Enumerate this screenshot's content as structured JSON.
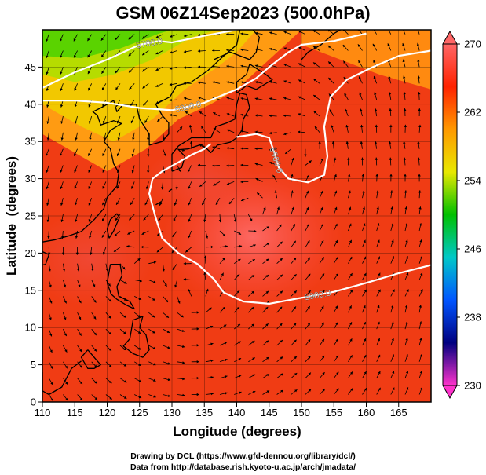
{
  "title": "GSM 06Z14Sep2023 (500.0hPa)",
  "credits": {
    "line1": "Drawing by DCL (https://www.gfd-dennou.org/library/dcl/)",
    "line2": "Data from http://database.rish.kyoto-u.ac.jp/arch/jmadata/"
  },
  "chart_data": {
    "type": "map",
    "xlabel": "Longitude (degrees)",
    "ylabel": "Latitude  (degrees)",
    "xlim": [
      110,
      170
    ],
    "ylim": [
      0,
      50
    ],
    "x_ticks": [
      110,
      115,
      120,
      125,
      130,
      135,
      140,
      145,
      150,
      155,
      160,
      165
    ],
    "y_ticks": [
      0,
      5,
      10,
      15,
      20,
      25,
      30,
      35,
      40,
      45
    ],
    "colorbar": {
      "ticks": [
        230,
        238,
        246,
        254,
        262,
        270
      ],
      "range": [
        230,
        270
      ],
      "colors": [
        "#ff33cc",
        "#000080",
        "#0055ff",
        "#00c8c8",
        "#00c000",
        "#e8e800",
        "#ff9900",
        "#ff2200",
        "#ff6666"
      ]
    },
    "contours": [
      {
        "label": "5700.0",
        "points": [
          [
            110,
            42.2
          ],
          [
            115,
            44.3
          ],
          [
            120,
            46
          ],
          [
            125,
            48
          ],
          [
            128,
            48.5
          ],
          [
            130,
            48.3
          ],
          [
            135,
            49.2
          ],
          [
            140,
            50
          ]
        ]
      },
      {
        "label": "5800.0",
        "points": [
          [
            110,
            40.5
          ],
          [
            115,
            40.5
          ],
          [
            120,
            40.2
          ],
          [
            125,
            39.5
          ],
          [
            130,
            39.2
          ],
          [
            135,
            40.2
          ],
          [
            138,
            41.3
          ],
          [
            140,
            42
          ],
          [
            143,
            43.5
          ],
          [
            145,
            45
          ],
          [
            148,
            47
          ],
          [
            150,
            48
          ],
          [
            155,
            48.5
          ],
          [
            160,
            49.5
          ]
        ]
      },
      {
        "label": "5900.0",
        "points": [
          [
            140,
            35.6
          ],
          [
            143,
            36
          ],
          [
            145,
            35.5
          ],
          [
            145.8,
            33.5
          ],
          [
            146.5,
            31.5
          ],
          [
            148,
            30
          ],
          [
            151,
            29.5
          ],
          [
            153.5,
            30.5
          ],
          [
            154,
            33
          ],
          [
            153.5,
            37
          ],
          [
            154.5,
            41
          ],
          [
            157,
            43.3
          ],
          [
            161,
            45
          ],
          [
            165,
            46.5
          ],
          [
            170,
            47.2
          ]
        ]
      },
      {
        "label": "5900.0",
        "points": [
          [
            136,
            34.7
          ],
          [
            135,
            34
          ],
          [
            133,
            33.2
          ],
          [
            131,
            32.2
          ],
          [
            128.5,
            31
          ],
          [
            127,
            30
          ],
          [
            126.5,
            28
          ],
          [
            127.4,
            25
          ],
          [
            128.5,
            22
          ],
          [
            131,
            20
          ],
          [
            134,
            18.5
          ],
          [
            136.5,
            16.5
          ],
          [
            138,
            14.7
          ],
          [
            141,
            13.5
          ],
          [
            145,
            13.2
          ],
          [
            150,
            14
          ],
          [
            155,
            14.8
          ],
          [
            160,
            16
          ],
          [
            165,
            17.3
          ],
          [
            170,
            18.4
          ]
        ]
      }
    ],
    "circulation_centers": [
      [
        143,
        25.5
      ],
      [
        151.5,
        34.5
      ],
      [
        130,
        37
      ],
      [
        133,
        13.5
      ],
      [
        122,
        19
      ]
    ]
  },
  "colors": {
    "contour": "#ffffff",
    "coast": "#000000",
    "vector": "#000000"
  }
}
